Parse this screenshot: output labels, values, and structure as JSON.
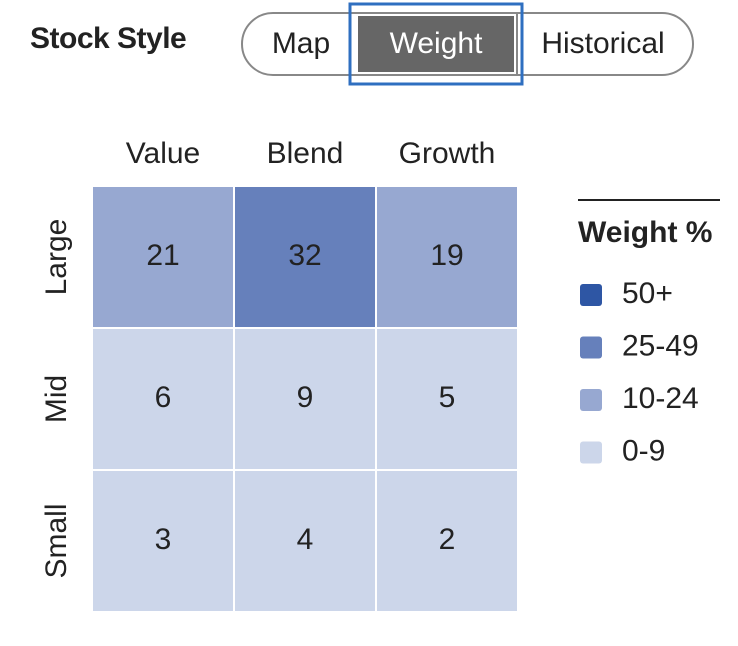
{
  "tabs": [
    "Map",
    "Weight",
    "Historical"
  ],
  "chart_data": {
    "type": "heatmap",
    "title": "Stock Style",
    "columns": [
      "Value",
      "Blend",
      "Growth"
    ],
    "rows": [
      "Large",
      "Mid",
      "Small"
    ],
    "values": [
      [
        21,
        32,
        19
      ],
      [
        6,
        9,
        5
      ],
      [
        3,
        4,
        2
      ]
    ],
    "legend_title": "Weight %",
    "legend": [
      {
        "value": 50,
        "label": "50+",
        "color": "#2e56a4"
      },
      {
        "value": 25,
        "label": "25-49",
        "color": "#6680bb"
      },
      {
        "value": 10,
        "label": "10-24",
        "color": "#97a8d1"
      },
      {
        "value": 0,
        "label": "0-9",
        "color": "#ccd6ea"
      }
    ]
  }
}
